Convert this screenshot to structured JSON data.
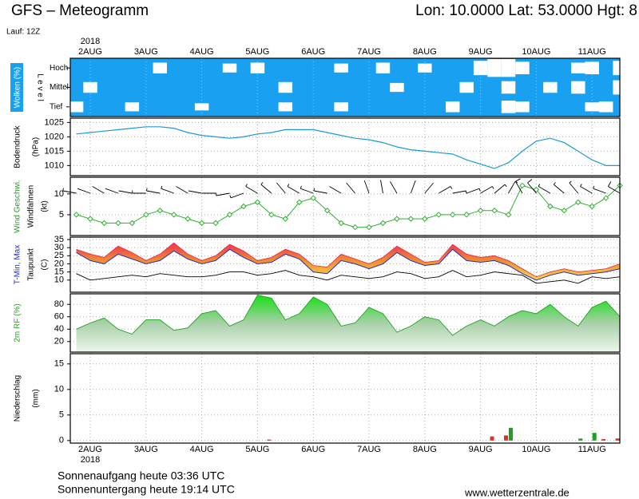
{
  "header": {
    "title": "GFS – Meteogramm",
    "location": "Lon: 10.0000  Lat: 53.0000  Hgt: 8",
    "run": "Lauf: 12Z"
  },
  "x_axis": {
    "year": "2018",
    "categories": [
      null,
      "2AUG",
      null,
      null,
      null,
      "3AUG",
      null,
      null,
      null,
      "4AUG",
      null,
      null,
      null,
      "5AUG",
      null,
      null,
      null,
      "6AUG",
      null,
      null,
      null,
      "7AUG",
      null,
      null,
      null,
      "8AUG",
      null,
      null,
      null,
      "9AUG",
      null,
      null,
      null,
      "10AUG",
      null,
      null,
      null,
      "11AUG",
      null,
      null
    ]
  },
  "chart_data": [
    {
      "type": "clouds",
      "y_labels": [
        "Wolken (%)"
      ],
      "y_label_colors": [
        "#ffffff"
      ],
      "level_label": "L e v e l",
      "background": "#1aa0f0",
      "series": [
        {
          "name": "Hoch",
          "color": "#ffffff",
          "values": [
            0,
            0,
            0,
            0,
            0,
            0,
            60,
            0,
            0,
            0,
            0,
            50,
            0,
            60,
            0,
            0,
            0,
            0,
            0,
            50,
            0,
            0,
            60,
            0,
            0,
            50,
            0,
            0,
            0,
            80,
            100,
            100,
            70,
            0,
            0,
            0,
            60,
            70,
            0,
            80
          ]
        },
        {
          "name": "Mittel",
          "color": "#ffffff",
          "values": [
            0,
            60,
            0,
            0,
            0,
            0,
            0,
            0,
            0,
            0,
            0,
            0,
            0,
            0,
            0,
            60,
            0,
            0,
            0,
            0,
            0,
            0,
            0,
            50,
            0,
            0,
            0,
            0,
            60,
            0,
            0,
            70,
            0,
            0,
            60,
            0,
            70,
            0,
            0,
            80
          ]
        },
        {
          "name": "Tief",
          "color": "#ffffff",
          "values": [
            60,
            0,
            0,
            0,
            50,
            0,
            0,
            0,
            0,
            40,
            0,
            0,
            0,
            0,
            0,
            50,
            0,
            0,
            0,
            50,
            0,
            0,
            0,
            0,
            0,
            0,
            0,
            60,
            0,
            0,
            0,
            70,
            60,
            0,
            0,
            0,
            0,
            50,
            60,
            0
          ]
        }
      ]
    },
    {
      "type": "line",
      "y_labels": [
        "Bodendruck",
        "(hPa)"
      ],
      "ylim": [
        1006.5,
        1026.5
      ],
      "yticks": [
        1010,
        1015,
        1020,
        1025
      ],
      "grid": true,
      "series": [
        {
          "color": "#1a9ad6",
          "values": [
            1021,
            1021.5,
            1022,
            1022.5,
            1023,
            1023.5,
            1023.5,
            1023,
            1021.5,
            1020.5,
            1020,
            1019.5,
            1020,
            1021,
            1021.5,
            1022.5,
            1022.5,
            1022.5,
            1021.5,
            1020.5,
            1019.5,
            1019,
            1018,
            1016.5,
            1015.5,
            1015,
            1014.5,
            1014,
            1012,
            1010.5,
            1009,
            1011,
            1015,
            1018.5,
            1019.5,
            1018,
            1015,
            1012,
            1010,
            1010
          ]
        }
      ]
    },
    {
      "type": "wind",
      "y_labels": [
        "Wind Geschwi.",
        "Windfahnen",
        "(kt)"
      ],
      "y_label_colors": [
        "#2a9a2a",
        "#000000",
        "#000000"
      ],
      "ylim": [
        0,
        14
      ],
      "yticks": [
        5,
        10
      ],
      "grid": true,
      "series": [
        {
          "color": "#30b030",
          "values": [
            5,
            4,
            3,
            3,
            3,
            5,
            6,
            5,
            4,
            3,
            3,
            5,
            7,
            8,
            5,
            4,
            8,
            9,
            6,
            3,
            2,
            2,
            3,
            4,
            4,
            4,
            5,
            5,
            5,
            6,
            6,
            5,
            12,
            11,
            7,
            6,
            8,
            7,
            9,
            12
          ]
        },
        {
          "color": "#000000",
          "values": [
            280,
            290,
            300,
            290,
            280,
            270,
            280,
            290,
            300,
            280,
            270,
            260,
            250,
            300,
            310,
            320,
            300,
            290,
            280,
            300,
            320,
            340,
            350,
            330,
            20,
            40,
            60,
            80,
            70,
            60,
            50,
            30,
            330,
            320,
            300,
            310,
            320,
            300,
            290,
            300
          ]
        }
      ]
    },
    {
      "type": "temperature",
      "y_labels": [
        "T-Min, Max",
        "Taupunkt",
        "(C)"
      ],
      "y_label_colors": [
        "#2030c0",
        "#000000",
        "#000000"
      ],
      "ylim": [
        2.5,
        36.5
      ],
      "yticks": [
        10,
        15,
        20,
        25,
        30,
        35
      ],
      "grid": true,
      "series": [
        {
          "color": "#2030c0",
          "values": [
            27,
            22,
            20,
            26,
            23,
            20,
            22,
            28,
            23,
            20,
            22,
            29,
            24,
            20,
            21,
            26,
            23,
            15,
            14,
            22,
            20,
            17,
            20,
            27,
            22,
            19,
            20,
            29,
            22,
            21,
            22,
            19,
            14,
            10,
            13,
            15,
            13,
            14,
            15,
            17
          ]
        },
        {
          "color": "#e8204a",
          "values": [
            29,
            26,
            24,
            31,
            27,
            22,
            26,
            33,
            26,
            22,
            25,
            32,
            28,
            22,
            24,
            29,
            26,
            19,
            18,
            26,
            23,
            20,
            24,
            31,
            26,
            21,
            22,
            32,
            26,
            24,
            25,
            22,
            17,
            12,
            15,
            17,
            15,
            16,
            17,
            20
          ]
        },
        {
          "color": "#000000",
          "values": [
            14,
            10,
            11,
            12,
            13,
            12,
            14,
            13,
            12,
            12,
            13,
            15,
            15,
            13,
            14,
            16,
            13,
            12,
            10,
            13,
            12,
            11,
            12,
            15,
            14,
            11,
            12,
            16,
            12,
            13,
            15,
            14,
            13,
            8,
            9,
            10,
            8,
            12,
            11,
            12
          ]
        }
      ]
    },
    {
      "type": "area",
      "y_labels": [
        "2m RF (%)"
      ],
      "y_label_colors": [
        "#2a9a2a"
      ],
      "ylim": [
        3,
        97
      ],
      "yticks": [
        20,
        40,
        60,
        80
      ],
      "grid": true,
      "series": [
        {
          "color": "#18c018",
          "values": [
            40,
            50,
            58,
            40,
            32,
            55,
            55,
            38,
            42,
            65,
            70,
            45,
            55,
            95,
            90,
            55,
            65,
            92,
            80,
            45,
            50,
            75,
            65,
            35,
            45,
            60,
            55,
            30,
            45,
            55,
            45,
            60,
            70,
            65,
            80,
            60,
            45,
            75,
            85,
            60
          ]
        }
      ]
    },
    {
      "type": "bar",
      "y_labels": [
        "Niederschlag",
        "(mm)"
      ],
      "ylim": [
        -0.5,
        17
      ],
      "yticks": [
        0,
        5,
        10,
        15
      ],
      "grid": true,
      "series": [
        {
          "color": "#e03020",
          "values": [
            0,
            0,
            0,
            0,
            0,
            0,
            0,
            0,
            0,
            0,
            0,
            0,
            0,
            0,
            0.2,
            0,
            0,
            0,
            0,
            0,
            0,
            0,
            0,
            0,
            0,
            0,
            0,
            0,
            0,
            0,
            0.8,
            1.0,
            0,
            0,
            0,
            0,
            0,
            0,
            0.3,
            0.4
          ]
        },
        {
          "color": "#20a020",
          "values": [
            0,
            0,
            0,
            0,
            0,
            0,
            0,
            0,
            0,
            0,
            0,
            0,
            0,
            0,
            0,
            0,
            0,
            0,
            0,
            0,
            0,
            0,
            0,
            0,
            0,
            0,
            0,
            0,
            0,
            0,
            0,
            2.5,
            0,
            0,
            0,
            0,
            0.4,
            1.5,
            0,
            0
          ]
        }
      ]
    }
  ],
  "footer": {
    "sunrise": "Sonnenaufgang heute 03:36 UTC",
    "sunset": "Sonnenuntergang heute 19:14 UTC",
    "source": "www.wetterzentrale.de"
  }
}
